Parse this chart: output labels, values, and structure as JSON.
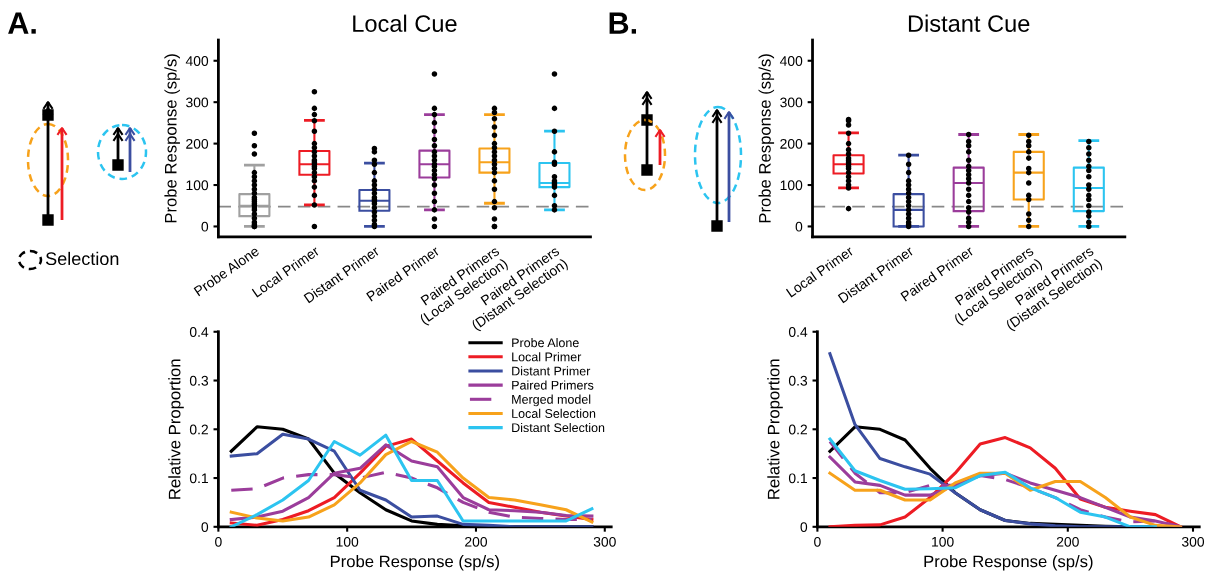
{
  "chart_data": [
    {
      "type": "box",
      "title": "Local Cue",
      "ylabel": "Probe Response (sp/s)",
      "annotations": [
        "A.",
        "Selection"
      ],
      "categories": [
        "Probe Alone",
        "Local Primer",
        "Distant Primer",
        "Paired Primer",
        "Paired Primers\n(Local Selection)",
        "Paired Primers\n(Distant Selection)"
      ],
      "colors": [
        "#a0a0a0",
        "#ed1c24",
        "#3b4ea0",
        "#9b3d9b",
        "#f7a21b",
        "#2cc4f0"
      ],
      "boxes": [
        {
          "low": 0,
          "q1": 25,
          "median": 50,
          "q3": 78,
          "high": 148
        },
        {
          "low": 52,
          "q1": 125,
          "median": 150,
          "q3": 182,
          "high": 256
        },
        {
          "low": 0,
          "q1": 38,
          "median": 62,
          "q3": 88,
          "high": 153
        },
        {
          "low": 40,
          "q1": 118,
          "median": 150,
          "q3": 183,
          "high": 270
        },
        {
          "low": 56,
          "q1": 130,
          "median": 155,
          "q3": 188,
          "high": 270
        },
        {
          "low": 40,
          "q1": 95,
          "median": 105,
          "q3": 153,
          "high": 230
        }
      ],
      "series": [
        {
          "type": "scatter",
          "color": "#000000",
          "x": [
            "Probe Alone",
            "Probe Alone",
            "Probe Alone",
            "Probe Alone",
            "Probe Alone",
            "Probe Alone",
            "Probe Alone",
            "Probe Alone",
            "Probe Alone",
            "Probe Alone",
            "Probe Alone",
            "Probe Alone",
            "Probe Alone",
            "Probe Alone",
            "Probe Alone",
            "Probe Alone",
            "Probe Alone",
            "Probe Alone",
            "Probe Alone",
            "Probe Alone",
            "Probe Alone",
            "Probe Alone",
            "Local Primer",
            "Local Primer",
            "Local Primer",
            "Local Primer",
            "Local Primer",
            "Local Primer",
            "Local Primer",
            "Local Primer",
            "Local Primer",
            "Local Primer",
            "Local Primer",
            "Local Primer",
            "Local Primer",
            "Local Primer",
            "Local Primer",
            "Local Primer",
            "Local Primer",
            "Local Primer",
            "Local Primer",
            "Local Primer",
            "Local Primer",
            "Distant Primer",
            "Distant Primer",
            "Distant Primer",
            "Distant Primer",
            "Distant Primer",
            "Distant Primer",
            "Distant Primer",
            "Distant Primer",
            "Distant Primer",
            "Distant Primer",
            "Distant Primer",
            "Distant Primer",
            "Distant Primer",
            "Distant Primer",
            "Distant Primer",
            "Distant Primer",
            "Distant Primer",
            "Distant Primer",
            "Distant Primer",
            "Paired Primer",
            "Paired Primer",
            "Paired Primer",
            "Paired Primer",
            "Paired Primer",
            "Paired Primer",
            "Paired Primer",
            "Paired Primer",
            "Paired Primer",
            "Paired Primer",
            "Paired Primer",
            "Paired Primer",
            "Paired Primer",
            "Paired Primer",
            "Paired Primer",
            "Paired Primer",
            "Paired Primer",
            "Paired Primer",
            "Paired Primer",
            "Paired Primer",
            "Paired Primer",
            "Paired Primers\n(Local Selection)",
            "Paired Primers\n(Local Selection)",
            "Paired Primers\n(Local Selection)",
            "Paired Primers\n(Local Selection)",
            "Paired Primers\n(Local Selection)",
            "Paired Primers\n(Local Selection)",
            "Paired Primers\n(Local Selection)",
            "Paired Primers\n(Local Selection)",
            "Paired Primers\n(Local Selection)",
            "Paired Primers\n(Local Selection)",
            "Paired Primers\n(Local Selection)",
            "Paired Primers\n(Local Selection)",
            "Paired Primers\n(Local Selection)",
            "Paired Primers\n(Local Selection)",
            "Paired Primers\n(Local Selection)",
            "Paired Primers\n(Local Selection)",
            "Paired Primers\n(Local Selection)",
            "Paired Primers\n(Local Selection)",
            "Paired Primers\n(Local Selection)",
            "Paired Primers\n(Local Selection)",
            "Paired Primers\n(Distant Selection)",
            "Paired Primers\n(Distant Selection)",
            "Paired Primers\n(Distant Selection)",
            "Paired Primers\n(Distant Selection)",
            "Paired Primers\n(Distant Selection)",
            "Paired Primers\n(Distant Selection)",
            "Paired Primers\n(Distant Selection)",
            "Paired Primers\n(Distant Selection)",
            "Paired Primers\n(Distant Selection)",
            "Paired Primers\n(Distant Selection)",
            "Paired Primers\n(Distant Selection)",
            "Paired Primers\n(Distant Selection)",
            "Paired Primers\n(Distant Selection)",
            "Paired Primers\n(Distant Selection)"
          ],
          "values": [
            0,
            0,
            5,
            10,
            20,
            30,
            40,
            45,
            50,
            55,
            60,
            65,
            70,
            80,
            90,
            100,
            110,
            120,
            130,
            175,
            195,
            225,
            0,
            52,
            75,
            95,
            110,
            120,
            130,
            140,
            145,
            150,
            155,
            160,
            170,
            180,
            190,
            200,
            230,
            255,
            270,
            285,
            325,
            0,
            5,
            15,
            25,
            35,
            45,
            55,
            60,
            65,
            70,
            80,
            90,
            100,
            110,
            130,
            150,
            160,
            180,
            188,
            0,
            18,
            40,
            60,
            80,
            100,
            115,
            125,
            135,
            145,
            150,
            160,
            170,
            180,
            195,
            210,
            230,
            250,
            270,
            285,
            368,
            0,
            18,
            45,
            60,
            90,
            110,
            130,
            140,
            150,
            160,
            170,
            180,
            190,
            200,
            220,
            240,
            260,
            275,
            285,
            0,
            40,
            50,
            75,
            95,
            100,
            105,
            110,
            120,
            150,
            155,
            180,
            230,
            285,
            368
          ]
        }
      ],
      "ref_lines": [
        {
          "axis": "y",
          "value": 48,
          "color": "#888888",
          "line_style": "dashed"
        }
      ],
      "ylim": [
        -25,
        450
      ],
      "yticks": [
        0,
        100,
        200,
        300,
        400
      ],
      "grid": false,
      "legend": false
    },
    {
      "type": "box",
      "title": "Distant Cue",
      "ylabel": "Probe Response (sp/s)",
      "annotations": [
        "B."
      ],
      "categories": [
        "Local Primer",
        "Distant Primer",
        "Paired Primer",
        "Paired Primers\n(Local Selection)",
        "Paired Primers\n(Distant Selection)"
      ],
      "colors": [
        "#ed1c24",
        "#3b4ea0",
        "#9b3d9b",
        "#f7a21b",
        "#2cc4f0"
      ],
      "boxes": [
        {
          "low": 93,
          "q1": 128,
          "median": 150,
          "q3": 172,
          "high": 226
        },
        {
          "low": 0,
          "q1": 0,
          "median": 40,
          "q3": 78,
          "high": 172
        },
        {
          "low": 0,
          "q1": 37,
          "median": 105,
          "q3": 142,
          "high": 222
        },
        {
          "low": 0,
          "q1": 65,
          "median": 130,
          "q3": 180,
          "high": 222
        },
        {
          "low": 0,
          "q1": 37,
          "median": 93,
          "q3": 142,
          "high": 207
        }
      ],
      "series": [
        {
          "type": "scatter",
          "color": "#000000",
          "x": [
            "Local Primer",
            "Local Primer",
            "Local Primer",
            "Local Primer",
            "Local Primer",
            "Local Primer",
            "Local Primer",
            "Local Primer",
            "Local Primer",
            "Local Primer",
            "Local Primer",
            "Local Primer",
            "Local Primer",
            "Local Primer",
            "Local Primer",
            "Local Primer",
            "Local Primer",
            "Local Primer",
            "Local Primer",
            "Distant Primer",
            "Distant Primer",
            "Distant Primer",
            "Distant Primer",
            "Distant Primer",
            "Distant Primer",
            "Distant Primer",
            "Distant Primer",
            "Distant Primer",
            "Distant Primer",
            "Distant Primer",
            "Distant Primer",
            "Distant Primer",
            "Distant Primer",
            "Distant Primer",
            "Distant Primer",
            "Paired Primer",
            "Paired Primer",
            "Paired Primer",
            "Paired Primer",
            "Paired Primer",
            "Paired Primer",
            "Paired Primer",
            "Paired Primer",
            "Paired Primer",
            "Paired Primer",
            "Paired Primer",
            "Paired Primer",
            "Paired Primer",
            "Paired Primer",
            "Paired Primer",
            "Paired Primer",
            "Paired Primer",
            "Paired Primer",
            "Paired Primers\n(Local Selection)",
            "Paired Primers\n(Local Selection)",
            "Paired Primers\n(Local Selection)",
            "Paired Primers\n(Local Selection)",
            "Paired Primers\n(Local Selection)",
            "Paired Primers\n(Local Selection)",
            "Paired Primers\n(Local Selection)",
            "Paired Primers\n(Local Selection)",
            "Paired Primers\n(Local Selection)",
            "Paired Primers\n(Local Selection)",
            "Paired Primers\n(Local Selection)",
            "Paired Primers\n(Local Selection)",
            "Paired Primers\n(Local Selection)",
            "Paired Primers\n(Distant Selection)",
            "Paired Primers\n(Distant Selection)",
            "Paired Primers\n(Distant Selection)",
            "Paired Primers\n(Distant Selection)",
            "Paired Primers\n(Distant Selection)",
            "Paired Primers\n(Distant Selection)",
            "Paired Primers\n(Distant Selection)",
            "Paired Primers\n(Distant Selection)",
            "Paired Primers\n(Distant Selection)",
            "Paired Primers\n(Distant Selection)",
            "Paired Primers\n(Distant Selection)",
            "Paired Primers\n(Distant Selection)",
            "Paired Primers\n(Distant Selection)",
            "Paired Primers\n(Distant Selection)",
            "Paired Primers\n(Distant Selection)",
            "Paired Primers\n(Distant Selection)"
          ],
          "values": [
            43,
            93,
            100,
            110,
            120,
            130,
            140,
            145,
            150,
            155,
            160,
            165,
            175,
            185,
            200,
            225,
            245,
            255,
            258,
            0,
            5,
            10,
            20,
            30,
            40,
            50,
            60,
            70,
            80,
            90,
            100,
            110,
            130,
            150,
            172,
            0,
            10,
            20,
            35,
            45,
            60,
            75,
            90,
            105,
            115,
            125,
            135,
            145,
            160,
            180,
            195,
            205,
            222,
            0,
            15,
            30,
            65,
            75,
            105,
            130,
            140,
            165,
            180,
            195,
            205,
            220,
            0,
            10,
            25,
            35,
            50,
            65,
            75,
            90,
            100,
            120,
            135,
            145,
            160,
            175,
            190,
            205
          ]
        }
      ],
      "ref_lines": [
        {
          "axis": "y",
          "value": 48,
          "color": "#888888",
          "line_style": "dashed"
        }
      ],
      "ylim": [
        -25,
        450
      ],
      "yticks": [
        0,
        100,
        200,
        300,
        400
      ],
      "grid": false,
      "legend": false
    },
    {
      "type": "line",
      "xlabel": "Probe Response (sp/s)",
      "ylabel": "Relative Proportion",
      "x": [
        10,
        30,
        50,
        70,
        90,
        110,
        130,
        150,
        170,
        190,
        210,
        230,
        250,
        270,
        290
      ],
      "series": [
        {
          "name": "Probe Alone",
          "color": "#000000",
          "values": [
            0.155,
            0.205,
            0.2,
            0.18,
            0.11,
            0.07,
            0.035,
            0.012,
            0.005,
            0.002,
            0,
            0,
            0,
            0,
            0
          ]
        },
        {
          "name": "Local Primer",
          "color": "#ed1c24",
          "values": [
            0.008,
            0.003,
            0.015,
            0.033,
            0.06,
            0.11,
            0.165,
            0.18,
            0.135,
            0.09,
            0.05,
            0.04,
            0.03,
            0.022,
            0.015
          ]
        },
        {
          "name": "Distant Primer",
          "color": "#3b4ea0",
          "values": [
            0.145,
            0.15,
            0.19,
            0.18,
            0.155,
            0.075,
            0.055,
            0.02,
            0.022,
            0.005,
            0.003,
            0,
            0,
            0,
            0
          ]
        },
        {
          "name": "Paired Primers",
          "color": "#9b3d9b",
          "values": [
            0.015,
            0.02,
            0.032,
            0.06,
            0.11,
            0.12,
            0.168,
            0.135,
            0.123,
            0.06,
            0.035,
            0.033,
            0.03,
            0.023,
            0.022
          ]
        },
        {
          "name": "Merged model",
          "color": "#9b3d9b",
          "line_style": "dashed",
          "values": [
            0.075,
            0.078,
            0.1,
            0.107,
            0.107,
            0.1,
            0.112,
            0.1,
            0.08,
            0.05,
            0.03,
            0.02,
            0.017,
            0.015,
            0.015
          ]
        },
        {
          "name": "Local Selection",
          "color": "#f7a21b",
          "values": [
            0.03,
            0.018,
            0.012,
            0.02,
            0.045,
            0.09,
            0.148,
            0.175,
            0.153,
            0.1,
            0.06,
            0.055,
            0.045,
            0.035,
            0.01
          ]
        },
        {
          "name": "Distant Selection",
          "color": "#2cc4f0",
          "values": [
            0,
            0.025,
            0.055,
            0.095,
            0.175,
            0.147,
            0.188,
            0.095,
            0.095,
            0.012,
            0.012,
            0.012,
            0.012,
            0.012,
            0.037
          ]
        }
      ],
      "xlim": [
        0,
        305
      ],
      "xticks": [
        0,
        100,
        200,
        300
      ],
      "ylim": [
        0,
        0.4
      ],
      "yticks": [
        0,
        0.1,
        0.2,
        0.3,
        0.4
      ],
      "grid": false,
      "legend": "top right",
      "marker": "none",
      "line_style": "solid"
    },
    {
      "type": "line",
      "xlabel": "Probe Response (sp/s)",
      "ylabel": "Relative Proportion",
      "x": [
        10,
        30,
        50,
        70,
        90,
        110,
        130,
        150,
        170,
        190,
        210,
        230,
        250,
        270,
        290
      ],
      "series": [
        {
          "color": "#000000",
          "values": [
            0.155,
            0.205,
            0.2,
            0.178,
            0.12,
            0.07,
            0.035,
            0.013,
            0.007,
            0.005,
            0.003,
            0.001,
            0,
            0,
            0
          ]
        },
        {
          "color": "#ed1c24",
          "values": [
            0,
            0.003,
            0.004,
            0.02,
            0.06,
            0.11,
            0.17,
            0.183,
            0.162,
            0.12,
            0.057,
            0.04,
            0.032,
            0.025,
            0
          ]
        },
        {
          "color": "#3b4ea0",
          "values": [
            0.355,
            0.21,
            0.14,
            0.123,
            0.108,
            0.07,
            0.035,
            0.013,
            0.006,
            0.002,
            0,
            0,
            0,
            0,
            0
          ]
        },
        {
          "color": "#9b3d9b",
          "values": [
            0.143,
            0.092,
            0.085,
            0.065,
            0.065,
            0.085,
            0.105,
            0.11,
            0.09,
            0.075,
            0.06,
            0.04,
            0.02,
            0.012,
            0
          ]
        },
        {
          "color": "#9b3d9b",
          "line_style": "dashed",
          "values": [
            0.175,
            0.11,
            0.07,
            0.07,
            0.085,
            0.085,
            0.105,
            0.097,
            0.08,
            0.06,
            0.035,
            0.02,
            0.01,
            0.012,
            0
          ]
        },
        {
          "color": "#f7a21b",
          "values": [
            0.11,
            0.075,
            0.075,
            0.055,
            0.055,
            0.09,
            0.11,
            0.11,
            0.075,
            0.093,
            0.093,
            0.06,
            0.02,
            0.003,
            0
          ]
        },
        {
          "color": "#2cc4f0",
          "values": [
            0.18,
            0.115,
            0.095,
            0.077,
            0.078,
            0.08,
            0.105,
            0.112,
            0.08,
            0.06,
            0.03,
            0.02,
            0,
            0,
            null
          ]
        }
      ],
      "xlim": [
        0,
        305
      ],
      "xticks": [
        0,
        100,
        200,
        300
      ],
      "ylim": [
        0,
        0.4
      ],
      "yticks": [
        0,
        0.1,
        0.2,
        0.3,
        0.4
      ],
      "grid": false,
      "legend": false,
      "marker": "none",
      "line_style": "solid"
    }
  ]
}
